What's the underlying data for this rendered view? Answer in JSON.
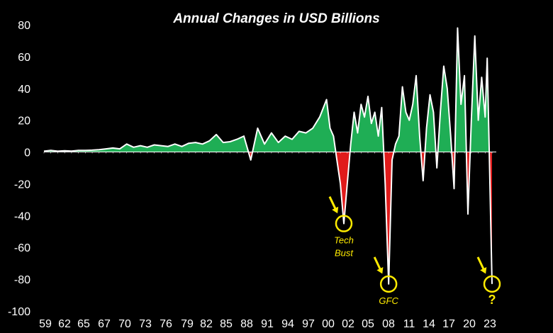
{
  "chart_data": {
    "type": "area",
    "title": "Annual Changes in USD Billions",
    "xlabel": "",
    "ylabel": "",
    "ylim": [
      -100,
      80
    ],
    "y_ticks": [
      80,
      60,
      40,
      20,
      0,
      -20,
      -40,
      -60,
      -80,
      -100
    ],
    "x_tick_labels": [
      "59",
      "62",
      "65",
      "67",
      "70",
      "73",
      "76",
      "79",
      "82",
      "85",
      "88",
      "91",
      "94",
      "97",
      "00",
      "02",
      "05",
      "08",
      "11",
      "14",
      "17",
      "20",
      "23"
    ],
    "positive_color": "#1fae55",
    "negative_color": "#e01b1b",
    "line_color": "#ffffff",
    "grid": false,
    "series": [
      {
        "values_by_year": [
          [
            1959,
            0.5
          ],
          [
            1960,
            1.0
          ],
          [
            1961,
            0.5
          ],
          [
            1962,
            0.8
          ],
          [
            1963,
            0.6
          ],
          [
            1964,
            1.0
          ],
          [
            1965,
            1.0
          ],
          [
            1966,
            1.2
          ],
          [
            1967,
            1.5
          ],
          [
            1968,
            2.0
          ],
          [
            1969,
            2.5
          ],
          [
            1970,
            2.0
          ],
          [
            1971,
            5.0
          ],
          [
            1972,
            3.0
          ],
          [
            1973,
            4.0
          ],
          [
            1974,
            3.0
          ],
          [
            1975,
            4.5
          ],
          [
            1976,
            4.0
          ],
          [
            1977,
            3.5
          ],
          [
            1978,
            5.0
          ],
          [
            1979,
            3.5
          ],
          [
            1980,
            5.5
          ],
          [
            1981,
            6.0
          ],
          [
            1982,
            5.0
          ],
          [
            1983,
            7.0
          ],
          [
            1984,
            11.0
          ],
          [
            1985,
            6.0
          ],
          [
            1986,
            6.5
          ],
          [
            1987,
            8.0
          ],
          [
            1988,
            10.0
          ],
          [
            1989,
            -5.0
          ],
          [
            1990,
            15.0
          ],
          [
            1991,
            5.0
          ],
          [
            1992,
            12.0
          ],
          [
            1993,
            6.0
          ],
          [
            1994,
            10.0
          ],
          [
            1995,
            8.0
          ],
          [
            1996,
            13.0
          ],
          [
            1997,
            12.0
          ],
          [
            1998,
            15.0
          ],
          [
            1999,
            22.0
          ],
          [
            2000,
            33.0
          ],
          [
            2000.5,
            15.0
          ],
          [
            2001,
            10.0
          ],
          [
            2001.5,
            -5.0
          ],
          [
            2002,
            -20.0
          ],
          [
            2002.5,
            -45.0
          ],
          [
            2003,
            -20.0
          ],
          [
            2003.5,
            5.0
          ],
          [
            2004,
            25.0
          ],
          [
            2004.5,
            12.0
          ],
          [
            2005,
            30.0
          ],
          [
            2005.5,
            22.0
          ],
          [
            2006,
            35.0
          ],
          [
            2006.5,
            18.0
          ],
          [
            2007,
            25.0
          ],
          [
            2007.5,
            10.0
          ],
          [
            2008,
            28.0
          ],
          [
            2008.5,
            -20.0
          ],
          [
            2009,
            -83.0
          ],
          [
            2009.5,
            -5.0
          ],
          [
            2010,
            5.0
          ],
          [
            2010.5,
            10.0
          ],
          [
            2011,
            41.0
          ],
          [
            2011.5,
            25.0
          ],
          [
            2012,
            20.0
          ],
          [
            2012.5,
            30.0
          ],
          [
            2013,
            48.0
          ],
          [
            2013.5,
            10.0
          ],
          [
            2014,
            -18.0
          ],
          [
            2014.5,
            15.0
          ],
          [
            2015,
            36.0
          ],
          [
            2015.5,
            25.0
          ],
          [
            2016,
            -10.0
          ],
          [
            2016.5,
            25.0
          ],
          [
            2017,
            54.0
          ],
          [
            2017.5,
            40.0
          ],
          [
            2018,
            10.0
          ],
          [
            2018.5,
            -23.0
          ],
          [
            2019,
            78.0
          ],
          [
            2019.5,
            30.0
          ],
          [
            2020,
            48.0
          ],
          [
            2020.5,
            -39.0
          ],
          [
            2021,
            20.0
          ],
          [
            2021.5,
            73.0
          ],
          [
            2022,
            20.0
          ],
          [
            2022.5,
            47.0
          ],
          [
            2023,
            22.0
          ],
          [
            2023.3,
            59.0
          ],
          [
            2023.6,
            0.0
          ],
          [
            2024,
            -83.0
          ]
        ]
      }
    ],
    "annotations": [
      {
        "label_lines": [
          "Tech",
          "Bust"
        ],
        "year": 2002.5,
        "value": -45
      },
      {
        "label_lines": [
          "GFC"
        ],
        "year": 2009,
        "value": -83
      },
      {
        "label_lines": [
          "?"
        ],
        "year": 2024,
        "value": -83
      }
    ]
  }
}
